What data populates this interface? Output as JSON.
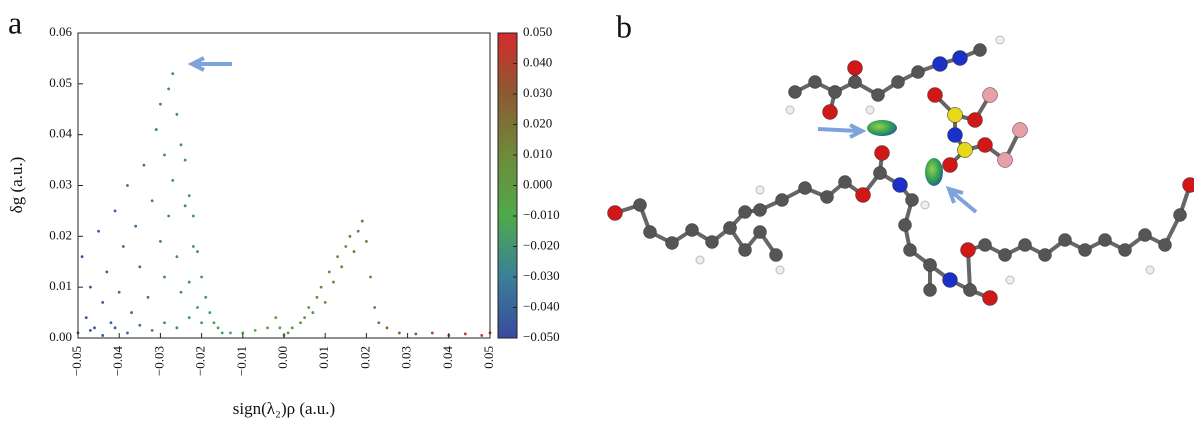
{
  "panel_labels": [
    "a",
    "b"
  ],
  "chart_data": {
    "type": "scatter",
    "xlabel": "sign(λ₂)ρ (a.u.)",
    "ylabel": "δg (a.u.)",
    "xlim": [
      -0.05,
      0.05
    ],
    "ylim": [
      0,
      0.06
    ],
    "xticks": [
      {
        "value": -0.05,
        "label": "−0.05"
      },
      {
        "value": -0.04,
        "label": "−0.04"
      },
      {
        "value": -0.03,
        "label": "−0.03"
      },
      {
        "value": -0.02,
        "label": "−0.02"
      },
      {
        "value": -0.01,
        "label": "−0.01"
      },
      {
        "value": 0,
        "label": "0.00"
      },
      {
        "value": 0.01,
        "label": "0.01"
      },
      {
        "value": 0.02,
        "label": "0.02"
      },
      {
        "value": 0.03,
        "label": "0.03"
      },
      {
        "value": 0.04,
        "label": "0.04"
      },
      {
        "value": 0.05,
        "label": "0.05"
      }
    ],
    "yticks": [
      {
        "value": 0,
        "label": "0.00"
      },
      {
        "value": 0.01,
        "label": "0.01"
      },
      {
        "value": 0.02,
        "label": "0.02"
      },
      {
        "value": 0.03,
        "label": "0.03"
      },
      {
        "value": 0.04,
        "label": "0.04"
      },
      {
        "value": 0.05,
        "label": "0.05"
      },
      {
        "value": 0.06,
        "label": "0.06"
      }
    ],
    "colorbar": {
      "lim": [
        -0.05,
        0.05
      ],
      "colors": [
        "#3a4a9c",
        "#3b7f9a",
        "#4faa4a",
        "#6f8a3a",
        "#8c5a32",
        "#d42b2b"
      ],
      "ticks": [
        {
          "value": 0.05,
          "label": "0.050"
        },
        {
          "value": 0.04,
          "label": "0.040"
        },
        {
          "value": 0.03,
          "label": "0.030"
        },
        {
          "value": 0.02,
          "label": "0.020"
        },
        {
          "value": 0.01,
          "label": "0.010"
        },
        {
          "value": 0,
          "label": "0.000"
        },
        {
          "value": -0.01,
          "label": "−0.010"
        },
        {
          "value": -0.02,
          "label": "−0.020"
        },
        {
          "value": -0.03,
          "label": "−0.030"
        },
        {
          "value": -0.04,
          "label": "−0.040"
        },
        {
          "value": -0.05,
          "label": "−0.050"
        }
      ]
    },
    "x": [
      -0.049,
      -0.048,
      -0.047,
      -0.046,
      -0.045,
      -0.044,
      -0.043,
      -0.042,
      -0.041,
      -0.04,
      -0.039,
      -0.038,
      -0.037,
      -0.036,
      -0.035,
      -0.034,
      -0.033,
      -0.032,
      -0.031,
      -0.03,
      -0.03,
      -0.029,
      -0.029,
      -0.028,
      -0.028,
      -0.027,
      -0.027,
      -0.026,
      -0.026,
      -0.025,
      -0.025,
      -0.024,
      -0.024,
      -0.023,
      -0.023,
      -0.022,
      -0.022,
      -0.021,
      -0.021,
      -0.02,
      -0.019,
      -0.018,
      -0.017,
      -0.016,
      -0.015,
      -0.013,
      -0.05,
      -0.047,
      -0.044,
      -0.041,
      -0.038,
      -0.035,
      -0.032,
      -0.029,
      -0.026,
      -0.023,
      -0.02,
      -0.01,
      -0.007,
      -0.004,
      -0.002,
      -0.001,
      0.0,
      0.001,
      0.002,
      0.004,
      0.005,
      0.006,
      0.007,
      0.008,
      0.009,
      0.01,
      0.011,
      0.012,
      0.013,
      0.014,
      0.015,
      0.016,
      0.017,
      0.018,
      0.019,
      0.02,
      0.021,
      0.022,
      0.023,
      0.025,
      0.028,
      0.032,
      0.036,
      0.04,
      0.044,
      0.048,
      0.05
    ],
    "y": [
      0.016,
      0.004,
      0.01,
      0.002,
      0.021,
      0.007,
      0.013,
      0.003,
      0.025,
      0.009,
      0.018,
      0.03,
      0.005,
      0.022,
      0.014,
      0.034,
      0.008,
      0.027,
      0.041,
      0.019,
      0.046,
      0.012,
      0.036,
      0.049,
      0.024,
      0.052,
      0.031,
      0.044,
      0.016,
      0.038,
      0.009,
      0.035,
      0.026,
      0.028,
      0.011,
      0.024,
      0.018,
      0.017,
      0.006,
      0.012,
      0.008,
      0.005,
      0.003,
      0.002,
      0.001,
      0.001,
      0.001,
      0.0015,
      0.0005,
      0.002,
      0.001,
      0.0025,
      0.0015,
      0.003,
      0.002,
      0.004,
      0.003,
      0.001,
      0.0015,
      0.002,
      0.004,
      0.002,
      0.0005,
      0.001,
      0.002,
      0.003,
      0.004,
      0.006,
      0.005,
      0.008,
      0.01,
      0.007,
      0.013,
      0.011,
      0.016,
      0.014,
      0.018,
      0.02,
      0.017,
      0.021,
      0.023,
      0.019,
      0.012,
      0.006,
      0.003,
      0.002,
      0.001,
      0.0008,
      0.001,
      0.0005,
      0.0008,
      0.0005,
      0.001
    ]
  }
}
